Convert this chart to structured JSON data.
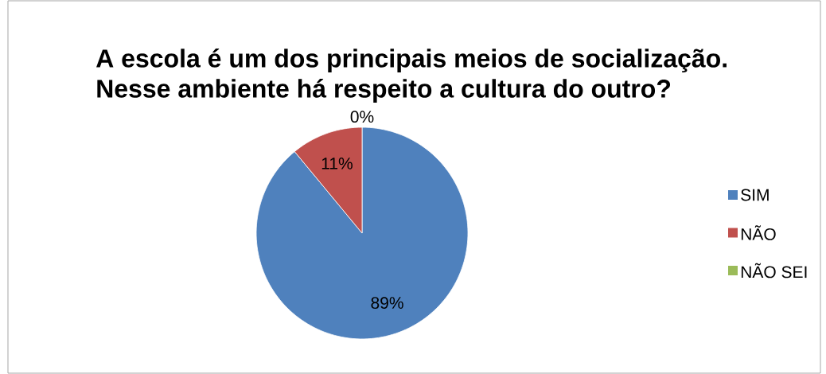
{
  "chart_data": {
    "type": "pie",
    "title": "A escola é um dos principais meios de socialização.\nNesse ambiente há respeito a cultura do outro?",
    "categories": [
      "SIM",
      "NÃO",
      "NÃO SEI"
    ],
    "values": [
      89,
      11,
      0
    ],
    "colors": [
      "#4f81bd",
      "#c0504d",
      "#9bbb59"
    ],
    "value_labels": [
      "89%",
      "11%",
      "0%"
    ],
    "legend": "right"
  }
}
